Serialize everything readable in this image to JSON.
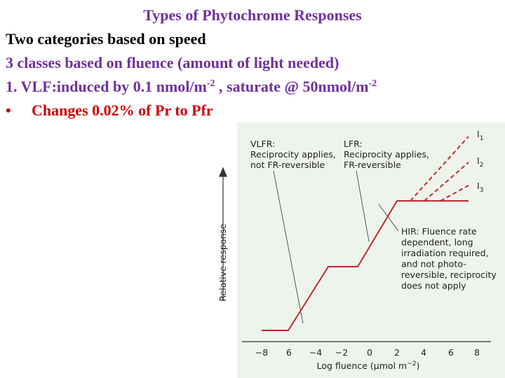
{
  "slide": {
    "title": "Types of Phytochrome Responses",
    "line1": "Two categories based on speed",
    "line2": "3 classes based on fluence (amount of light needed)",
    "line3": {
      "text1": "1.  VLF:induced by 0.1 nmol/m",
      "sup1": "-2",
      "text2": " , saturate @  50nmol/m",
      "sup2": "-2"
    },
    "line4": {
      "bullet": "•",
      "text": "Changes 0.02% of Pr to Pfr"
    }
  },
  "figure": {
    "y_label": "Relative response",
    "x_label": {
      "text": "Log fluence (μmol m",
      "sup": "−2",
      "end": ")"
    },
    "x_ticks": [
      "−8",
      "6",
      "−4",
      "−2",
      "0",
      "2",
      "4",
      "6",
      "8"
    ],
    "vlfr": [
      "VLFR:",
      "Reciprocity applies,",
      "not FR-reversible"
    ],
    "lfr": [
      "LFR:",
      "Reciprocity applies,",
      "FR-reversible"
    ],
    "hir": [
      "HIR: Fluence rate",
      "dependent, long",
      "irradiation required,",
      "and not photo-",
      "reversible, reciprocity",
      "does not apply"
    ],
    "curves": [
      {
        "name": "I",
        "sub": "1"
      },
      {
        "name": "I",
        "sub": "2"
      },
      {
        "name": "I",
        "sub": "3"
      }
    ]
  }
}
